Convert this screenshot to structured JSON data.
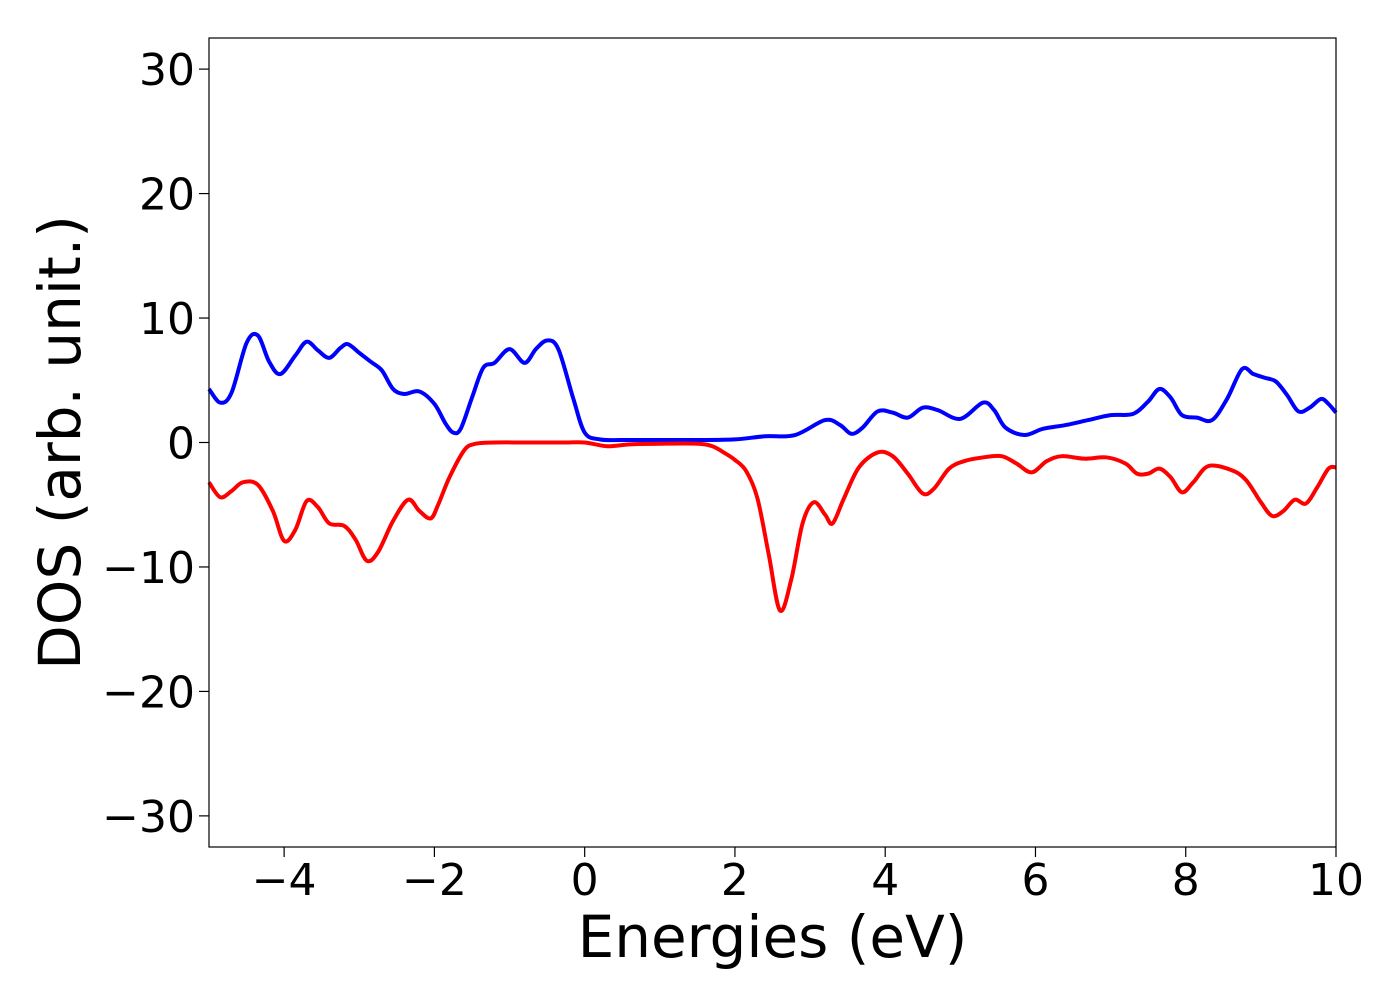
{
  "chart_data": {
    "type": "line",
    "title": "",
    "xlabel": "Energies (eV)",
    "ylabel": "DOS (arb. unit.)",
    "xlim": [
      -5,
      10
    ],
    "ylim": [
      -32.5,
      32.5
    ],
    "x_ticks": [
      -4,
      -2,
      0,
      2,
      4,
      6,
      8,
      10
    ],
    "x_tick_labels": [
      "−4",
      "−2",
      "0",
      "2",
      "4",
      "6",
      "8",
      "10"
    ],
    "y_ticks": [
      30,
      20,
      10,
      0,
      -10,
      -20,
      -30
    ],
    "y_tick_labels": [
      "30",
      "20",
      "10",
      "0",
      "−10",
      "−20",
      "−30"
    ],
    "grid": false,
    "legend": "none",
    "series": [
      {
        "color": "#0000ff",
        "points": [
          [
            -5.0,
            4.3
          ],
          [
            -4.85,
            3.2
          ],
          [
            -4.7,
            4.0
          ],
          [
            -4.5,
            8.0
          ],
          [
            -4.35,
            8.6
          ],
          [
            -4.2,
            6.5
          ],
          [
            -4.05,
            5.5
          ],
          [
            -3.85,
            7.0
          ],
          [
            -3.7,
            8.1
          ],
          [
            -3.55,
            7.4
          ],
          [
            -3.4,
            6.8
          ],
          [
            -3.25,
            7.6
          ],
          [
            -3.15,
            7.9
          ],
          [
            -3.0,
            7.2
          ],
          [
            -2.85,
            6.5
          ],
          [
            -2.7,
            5.8
          ],
          [
            -2.55,
            4.3
          ],
          [
            -2.4,
            3.9
          ],
          [
            -2.2,
            4.1
          ],
          [
            -2.0,
            3.1
          ],
          [
            -1.85,
            1.5
          ],
          [
            -1.75,
            0.8
          ],
          [
            -1.65,
            1.1
          ],
          [
            -1.5,
            3.6
          ],
          [
            -1.35,
            6.0
          ],
          [
            -1.2,
            6.4
          ],
          [
            -1.0,
            7.5
          ],
          [
            -0.8,
            6.4
          ],
          [
            -0.65,
            7.5
          ],
          [
            -0.5,
            8.2
          ],
          [
            -0.35,
            7.5
          ],
          [
            -0.15,
            3.5
          ],
          [
            0.0,
            0.8
          ],
          [
            0.2,
            0.25
          ],
          [
            0.5,
            0.2
          ],
          [
            1.0,
            0.2
          ],
          [
            1.5,
            0.2
          ],
          [
            2.0,
            0.25
          ],
          [
            2.4,
            0.5
          ],
          [
            2.8,
            0.6
          ],
          [
            3.2,
            1.8
          ],
          [
            3.4,
            1.4
          ],
          [
            3.55,
            0.7
          ],
          [
            3.7,
            1.2
          ],
          [
            3.9,
            2.5
          ],
          [
            4.1,
            2.4
          ],
          [
            4.3,
            2.0
          ],
          [
            4.5,
            2.8
          ],
          [
            4.7,
            2.6
          ],
          [
            5.0,
            1.9
          ],
          [
            5.3,
            3.2
          ],
          [
            5.45,
            2.6
          ],
          [
            5.6,
            1.2
          ],
          [
            5.85,
            0.6
          ],
          [
            6.1,
            1.1
          ],
          [
            6.4,
            1.4
          ],
          [
            6.7,
            1.8
          ],
          [
            7.0,
            2.2
          ],
          [
            7.3,
            2.3
          ],
          [
            7.5,
            3.3
          ],
          [
            7.65,
            4.3
          ],
          [
            7.8,
            3.6
          ],
          [
            7.95,
            2.2
          ],
          [
            8.15,
            2.0
          ],
          [
            8.35,
            1.8
          ],
          [
            8.55,
            3.5
          ],
          [
            8.75,
            5.9
          ],
          [
            8.9,
            5.5
          ],
          [
            9.05,
            5.2
          ],
          [
            9.2,
            4.9
          ],
          [
            9.35,
            3.8
          ],
          [
            9.5,
            2.5
          ],
          [
            9.65,
            2.8
          ],
          [
            9.8,
            3.5
          ],
          [
            9.9,
            3.1
          ],
          [
            10.0,
            2.4
          ]
        ]
      },
      {
        "color": "#ff0000",
        "points": [
          [
            -5.0,
            -3.2
          ],
          [
            -4.85,
            -4.4
          ],
          [
            -4.7,
            -3.9
          ],
          [
            -4.55,
            -3.2
          ],
          [
            -4.35,
            -3.4
          ],
          [
            -4.15,
            -5.5
          ],
          [
            -4.0,
            -7.9
          ],
          [
            -3.85,
            -7.0
          ],
          [
            -3.7,
            -4.7
          ],
          [
            -3.55,
            -5.2
          ],
          [
            -3.4,
            -6.5
          ],
          [
            -3.2,
            -6.7
          ],
          [
            -3.05,
            -7.8
          ],
          [
            -2.9,
            -9.5
          ],
          [
            -2.75,
            -8.8
          ],
          [
            -2.55,
            -6.3
          ],
          [
            -2.35,
            -4.6
          ],
          [
            -2.2,
            -5.5
          ],
          [
            -2.05,
            -6.1
          ],
          [
            -1.95,
            -5.0
          ],
          [
            -1.8,
            -2.8
          ],
          [
            -1.6,
            -0.6
          ],
          [
            -1.45,
            -0.1
          ],
          [
            -1.2,
            0.0
          ],
          [
            -0.8,
            0.0
          ],
          [
            -0.3,
            0.0
          ],
          [
            0.0,
            0.0
          ],
          [
            0.3,
            -0.3
          ],
          [
            0.6,
            -0.15
          ],
          [
            1.0,
            -0.1
          ],
          [
            1.5,
            -0.1
          ],
          [
            1.7,
            -0.3
          ],
          [
            1.85,
            -0.8
          ],
          [
            2.0,
            -1.4
          ],
          [
            2.15,
            -2.3
          ],
          [
            2.3,
            -4.5
          ],
          [
            2.45,
            -9.0
          ],
          [
            2.6,
            -13.5
          ],
          [
            2.75,
            -11.0
          ],
          [
            2.9,
            -6.5
          ],
          [
            3.05,
            -4.8
          ],
          [
            3.2,
            -5.8
          ],
          [
            3.3,
            -6.5
          ],
          [
            3.45,
            -4.5
          ],
          [
            3.65,
            -2.0
          ],
          [
            3.9,
            -0.8
          ],
          [
            4.1,
            -1.1
          ],
          [
            4.3,
            -2.5
          ],
          [
            4.5,
            -4.1
          ],
          [
            4.65,
            -3.7
          ],
          [
            4.85,
            -2.1
          ],
          [
            5.05,
            -1.5
          ],
          [
            5.3,
            -1.2
          ],
          [
            5.55,
            -1.1
          ],
          [
            5.75,
            -1.7
          ],
          [
            5.95,
            -2.4
          ],
          [
            6.15,
            -1.5
          ],
          [
            6.35,
            -1.1
          ],
          [
            6.65,
            -1.3
          ],
          [
            6.95,
            -1.2
          ],
          [
            7.2,
            -1.7
          ],
          [
            7.35,
            -2.5
          ],
          [
            7.5,
            -2.5
          ],
          [
            7.65,
            -2.1
          ],
          [
            7.8,
            -2.8
          ],
          [
            7.95,
            -4.0
          ],
          [
            8.1,
            -3.2
          ],
          [
            8.3,
            -1.9
          ],
          [
            8.6,
            -2.2
          ],
          [
            8.8,
            -3.0
          ],
          [
            9.0,
            -4.8
          ],
          [
            9.15,
            -5.9
          ],
          [
            9.3,
            -5.5
          ],
          [
            9.45,
            -4.6
          ],
          [
            9.6,
            -4.9
          ],
          [
            9.75,
            -3.6
          ],
          [
            9.9,
            -2.1
          ],
          [
            10.0,
            -2.0
          ]
        ]
      }
    ]
  }
}
